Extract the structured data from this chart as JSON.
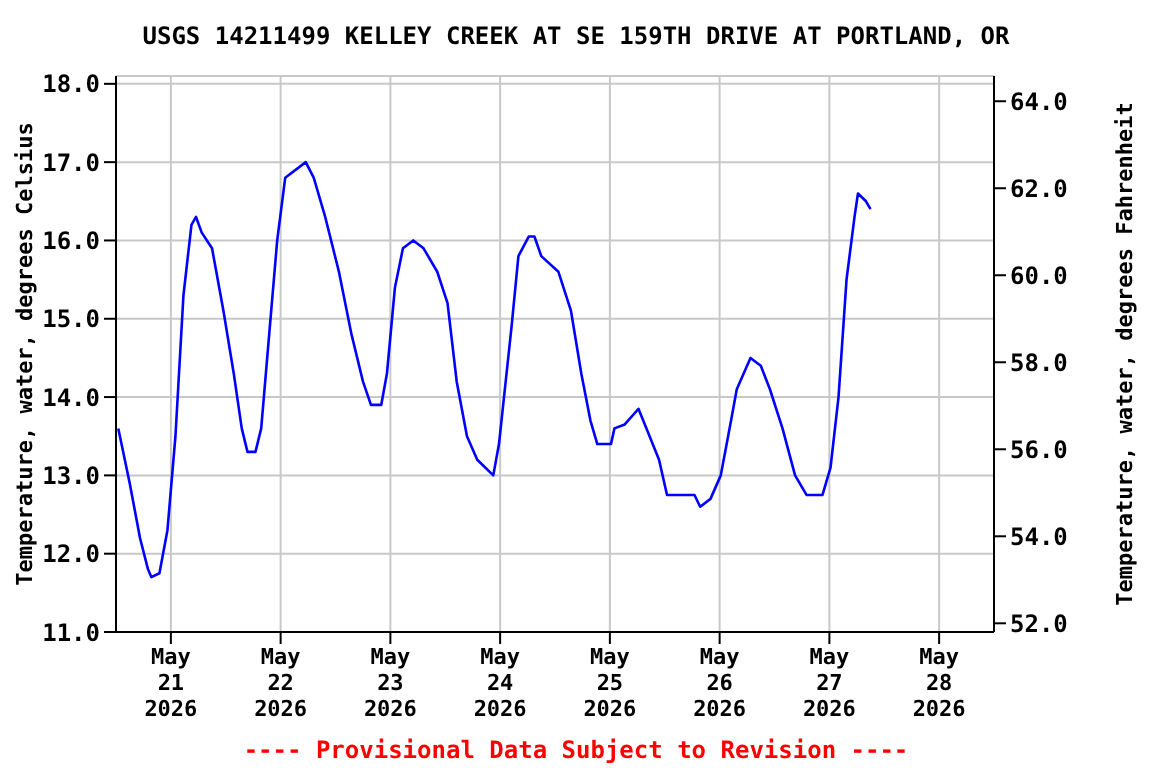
{
  "chart_data": {
    "type": "line",
    "title": "USGS 14211499 KELLEY CREEK AT SE 159TH DRIVE AT PORTLAND, OR",
    "ylabel": "Temperature, water, degrees Celsius",
    "y2label": "Temperature, water, degrees Fahrenheit",
    "annotations": [
      "---- Provisional Data Subject to Revision ----"
    ],
    "x": [
      "2026-05-20T12:30",
      "2026-05-20T15:00",
      "2026-05-20T17:15",
      "2026-05-20T19:00",
      "2026-05-20T19:45",
      "2026-05-20T21:30",
      "2026-05-20T23:15",
      "2026-05-21T01:00",
      "2026-05-21T02:45",
      "2026-05-21T04:30",
      "2026-05-21T05:30",
      "2026-05-21T06:45",
      "2026-05-21T09:00",
      "2026-05-21T11:30",
      "2026-05-21T13:45",
      "2026-05-21T15:30",
      "2026-05-21T16:45",
      "2026-05-21T18:30",
      "2026-05-21T19:45",
      "2026-05-21T21:30",
      "2026-05-21T23:15",
      "2026-05-22T01:00",
      "2026-05-22T05:30",
      "2026-05-22T07:15",
      "2026-05-22T09:45",
      "2026-05-22T12:45",
      "2026-05-22T15:30",
      "2026-05-22T18:00",
      "2026-05-22T19:45",
      "2026-05-22T22:00",
      "2026-05-22T23:15",
      "2026-05-23T01:00",
      "2026-05-23T02:45",
      "2026-05-23T05:00",
      "2026-05-23T07:15",
      "2026-05-23T10:15",
      "2026-05-23T12:30",
      "2026-05-23T14:30",
      "2026-05-23T16:45",
      "2026-05-23T19:00",
      "2026-05-23T22:30",
      "2026-05-23T23:45",
      "2026-05-24T02:30",
      "2026-05-24T04:00",
      "2026-05-24T06:15",
      "2026-05-24T07:30",
      "2026-05-24T09:00",
      "2026-05-24T12:45",
      "2026-05-24T15:30",
      "2026-05-24T17:45",
      "2026-05-24T19:45",
      "2026-05-24T21:15",
      "2026-05-25T00:15",
      "2026-05-25T01:00",
      "2026-05-25T03:15",
      "2026-05-25T05:30",
      "2026-05-25T06:15",
      "2026-05-25T08:00",
      "2026-05-25T10:45",
      "2026-05-25T12:30",
      "2026-05-25T18:30",
      "2026-05-25T19:45",
      "2026-05-25T22:00",
      "2026-05-26T00:15",
      "2026-05-26T02:30",
      "2026-05-26T03:45",
      "2026-05-26T06:00",
      "2026-05-26T06:45",
      "2026-05-26T09:00",
      "2026-05-26T11:00",
      "2026-05-26T13:45",
      "2026-05-26T16:30",
      "2026-05-26T19:00",
      "2026-05-26T22:30",
      "2026-05-27T00:15",
      "2026-05-27T02:00",
      "2026-05-27T03:45",
      "2026-05-27T05:30",
      "2026-05-27T06:15",
      "2026-05-27T08:00",
      "2026-05-27T09:00"
    ],
    "series": [
      {
        "color": "#0000ff",
        "values": [
          13.6,
          12.9,
          12.2,
          11.8,
          11.7,
          11.75,
          12.3,
          13.5,
          15.3,
          16.2,
          16.3,
          16.1,
          15.9,
          15.1,
          14.3,
          13.6,
          13.3,
          13.3,
          13.6,
          14.8,
          16.0,
          16.8,
          17.0,
          16.8,
          16.3,
          15.6,
          14.8,
          14.2,
          13.9,
          13.9,
          14.3,
          15.4,
          15.9,
          16.0,
          15.9,
          15.6,
          15.2,
          14.2,
          13.5,
          13.2,
          13.0,
          13.4,
          14.9,
          15.8,
          16.05,
          16.05,
          15.8,
          15.6,
          15.1,
          14.3,
          13.7,
          13.4,
          13.4,
          13.6,
          13.65,
          13.8,
          13.85,
          13.6,
          13.2,
          12.75,
          12.75,
          12.6,
          12.7,
          13.0,
          13.7,
          14.1,
          14.4,
          14.5,
          14.4,
          14.1,
          13.6,
          13.0,
          12.75,
          12.75,
          13.1,
          14.0,
          15.5,
          16.3,
          16.6,
          16.5,
          16.4
        ]
      }
    ],
    "xlim": [
      "2026-05-20T12:00",
      "2026-05-28T12:00"
    ],
    "xticks": [
      {
        "value": "2026-05-21",
        "label": "May\n21\n2026"
      },
      {
        "value": "2026-05-22",
        "label": "May\n22\n2026"
      },
      {
        "value": "2026-05-23",
        "label": "May\n23\n2026"
      },
      {
        "value": "2026-05-24",
        "label": "May\n24\n2026"
      },
      {
        "value": "2026-05-25",
        "label": "May\n25\n2026"
      },
      {
        "value": "2026-05-26",
        "label": "May\n26\n2026"
      },
      {
        "value": "2026-05-27",
        "label": "May\n27\n2026"
      },
      {
        "value": "2026-05-28",
        "label": "May\n28\n2026"
      }
    ],
    "ylim": [
      11,
      18.1
    ],
    "yticks": [
      {
        "value": 11,
        "label": "11.0"
      },
      {
        "value": 12,
        "label": "12.0"
      },
      {
        "value": 13,
        "label": "13.0"
      },
      {
        "value": 14,
        "label": "14.0"
      },
      {
        "value": 15,
        "label": "15.0"
      },
      {
        "value": 16,
        "label": "16.0"
      },
      {
        "value": 17,
        "label": "17.0"
      },
      {
        "value": 18,
        "label": "18.0"
      }
    ],
    "y2lim": [
      51.8,
      64.58
    ],
    "y2ticks": [
      {
        "value": 52,
        "label": "52.0"
      },
      {
        "value": 54,
        "label": "54.0"
      },
      {
        "value": 56,
        "label": "56.0"
      },
      {
        "value": 58,
        "label": "58.0"
      },
      {
        "value": 60,
        "label": "60.0"
      },
      {
        "value": 62,
        "label": "62.0"
      },
      {
        "value": 64,
        "label": "64.0"
      }
    ],
    "grid": true,
    "legend": false,
    "marker": "none",
    "line_style": "solid"
  }
}
